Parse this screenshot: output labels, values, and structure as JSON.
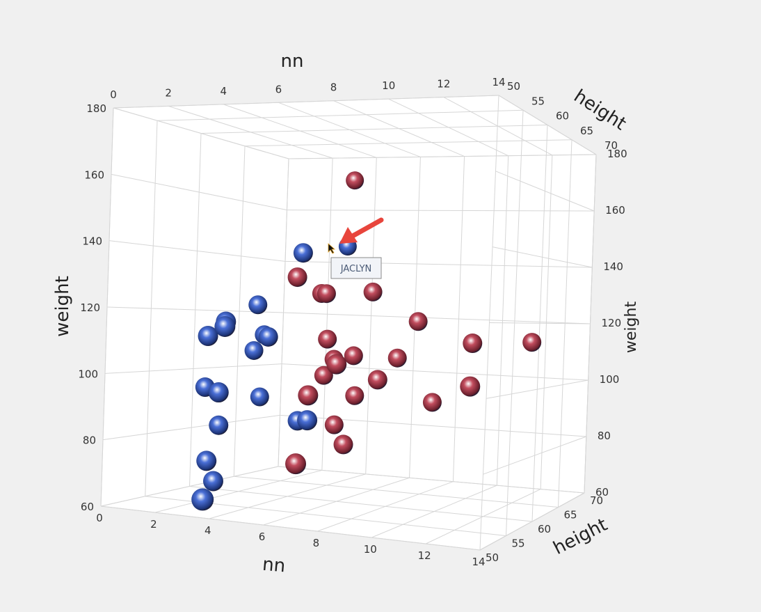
{
  "chart_data": {
    "type": "scatter3d",
    "axes": {
      "x": {
        "label": "nn",
        "range": [
          0,
          14
        ],
        "ticks": [
          0,
          2,
          4,
          6,
          8,
          10,
          12,
          14
        ]
      },
      "y": {
        "label": "weight",
        "range": [
          60,
          180
        ],
        "ticks": [
          60,
          80,
          100,
          120,
          140,
          160,
          180
        ]
      },
      "z": {
        "label": "height",
        "range": [
          50,
          70
        ],
        "ticks": [
          50,
          55,
          60,
          65,
          70
        ]
      }
    },
    "grid": true,
    "point_fields": [
      "nn",
      "weight",
      "height"
    ],
    "series": [
      {
        "color": "#c24d5e",
        "points": [
          [
            5.7,
            165,
            62
          ],
          [
            4.1,
            132,
            60
          ],
          [
            4.8,
            127,
            61
          ],
          [
            5.0,
            127,
            61
          ],
          [
            6.9,
            128,
            61
          ],
          [
            8.8,
            119,
            61
          ],
          [
            11.3,
            113,
            60
          ],
          [
            13.5,
            114,
            61
          ],
          [
            5.1,
            112,
            61
          ],
          [
            5.4,
            105.5,
            61
          ],
          [
            6.2,
            107,
            61
          ],
          [
            6.1,
            104.5,
            59
          ],
          [
            8.0,
            107,
            61
          ],
          [
            7.5,
            100,
            60
          ],
          [
            5.0,
            100,
            61
          ],
          [
            5.0,
            94,
            59
          ],
          [
            6.3,
            94,
            61
          ],
          [
            11.5,
            100,
            59
          ],
          [
            9.5,
            93.5,
            61
          ],
          [
            5.5,
            84,
            61
          ],
          [
            6.2,
            78.5,
            60
          ],
          [
            4.9,
            72.5,
            58
          ]
        ]
      },
      {
        "color": "#4a6fd6",
        "points": [
          [
            5.5,
            143,
            62
          ],
          [
            4.3,
            140,
            60
          ],
          [
            2.2,
            122.5,
            61
          ],
          [
            0.9,
            111.5,
            59
          ],
          [
            1.6,
            116.5,
            59
          ],
          [
            1.9,
            115,
            58
          ],
          [
            2.5,
            112.5,
            61
          ],
          [
            3.0,
            112,
            60
          ],
          [
            2.1,
            107,
            61
          ],
          [
            0.5,
            94,
            60
          ],
          [
            1.4,
            93,
            59
          ],
          [
            2.4,
            91.5,
            61
          ],
          [
            1.1,
            81.5,
            60
          ],
          [
            4.3,
            85,
            60
          ],
          [
            5.0,
            86,
            59
          ],
          [
            1.0,
            70,
            59
          ],
          [
            1.3,
            63.5,
            59
          ],
          [
            1.9,
            60,
            56
          ]
        ]
      }
    ],
    "tooltip": {
      "text": "JACLYN",
      "point": [
        5.5,
        143,
        62
      ]
    },
    "annotation": {
      "type": "arrow",
      "color": "#e8453c"
    }
  }
}
